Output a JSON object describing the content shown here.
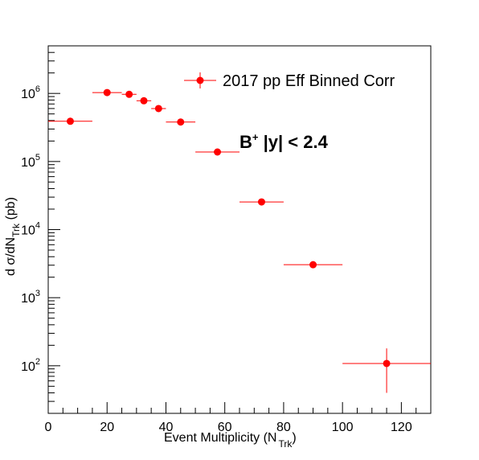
{
  "chart_data": {
    "type": "scatter",
    "title": "",
    "xlabel": "Event Multiplicity (N_Trk)",
    "ylabel": "d σ/dN_Trk (pb)",
    "xlim": [
      0,
      130
    ],
    "ylim": [
      20,
      5000000
    ],
    "yscale": "log",
    "x_ticks": [
      0,
      20,
      40,
      60,
      80,
      100,
      120
    ],
    "y_ticks": [
      100,
      1000,
      10000,
      100000,
      1000000
    ],
    "y_tick_labels": [
      {
        "base": "10",
        "exp": "2"
      },
      {
        "base": "10",
        "exp": "3"
      },
      {
        "base": "10",
        "exp": "4"
      },
      {
        "base": "10",
        "exp": "5"
      },
      {
        "base": "10",
        "exp": "6"
      }
    ],
    "grid": false,
    "legend_position": "top-right",
    "color": "#ff0000",
    "series": [
      {
        "name": "2017 pp Eff Binned Corr",
        "points": [
          {
            "x": 7.5,
            "y": 390000,
            "xlow": 0,
            "xhigh": 15,
            "ylow": 390000,
            "yhigh": 390000
          },
          {
            "x": 20,
            "y": 1030000,
            "xlow": 15,
            "xhigh": 25,
            "ylow": 1030000,
            "yhigh": 1030000
          },
          {
            "x": 27.5,
            "y": 970000,
            "xlow": 25,
            "xhigh": 30,
            "ylow": 970000,
            "yhigh": 970000
          },
          {
            "x": 32.5,
            "y": 780000,
            "xlow": 30,
            "xhigh": 35,
            "ylow": 780000,
            "yhigh": 780000
          },
          {
            "x": 37.5,
            "y": 600000,
            "xlow": 35,
            "xhigh": 40,
            "ylow": 600000,
            "yhigh": 600000
          },
          {
            "x": 45,
            "y": 380000,
            "xlow": 40,
            "xhigh": 50,
            "ylow": 380000,
            "yhigh": 380000
          },
          {
            "x": 57.5,
            "y": 138000,
            "xlow": 50,
            "xhigh": 65,
            "ylow": 138000,
            "yhigh": 138000
          },
          {
            "x": 72.5,
            "y": 25500,
            "xlow": 65,
            "xhigh": 80,
            "ylow": 25500,
            "yhigh": 25500
          },
          {
            "x": 90,
            "y": 3050,
            "xlow": 80,
            "xhigh": 100,
            "ylow": 3050,
            "yhigh": 3050
          },
          {
            "x": 115,
            "y": 108,
            "xlow": 100,
            "xhigh": 130,
            "ylow": 40,
            "yhigh": 180
          }
        ]
      }
    ],
    "annotation": {
      "prefix": "B",
      "superscript": "+",
      "rest": " |y| < 2.4"
    }
  },
  "labels": {
    "xlabel_main": "Event Multiplicity (N",
    "xlabel_sub": "Trk",
    "xlabel_close": ")",
    "ylabel_main": "d σ/dN",
    "ylabel_sub": "Trk",
    "ylabel_close": " (pb)"
  }
}
